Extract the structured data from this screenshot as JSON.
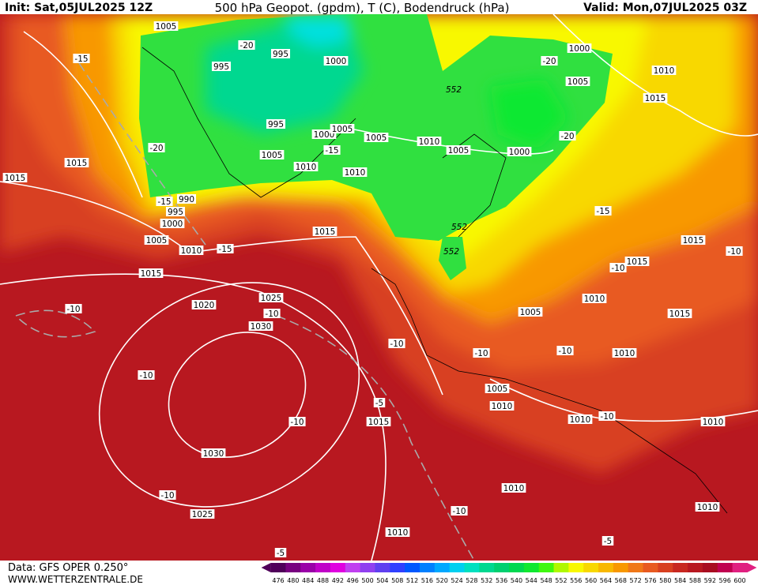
{
  "header": {
    "init": "Init: Sat,05JUL2025 12Z",
    "title": "500 hPa Geopot. (gpdm), T (C), Bodendruck (hPa)",
    "valid": "Valid: Mon,07JUL2025 03Z"
  },
  "footer": {
    "source": "Data: GFS OPER 0.250°",
    "site": "WWW.WETTERZENTRALE.DE"
  },
  "legend": {
    "values": [
      476,
      480,
      484,
      488,
      492,
      496,
      500,
      504,
      508,
      512,
      516,
      520,
      524,
      528,
      532,
      536,
      540,
      544,
      548,
      552,
      556,
      560,
      564,
      568,
      572,
      576,
      580,
      584,
      588,
      592,
      596,
      600
    ],
    "colors": [
      "#50005a",
      "#780080",
      "#9a00a8",
      "#c000c8",
      "#e000e0",
      "#c040f0",
      "#9040f0",
      "#6040f0",
      "#3040ff",
      "#0058ff",
      "#0080ff",
      "#00a8ff",
      "#00d0f0",
      "#00e0c0",
      "#00d890",
      "#00d070",
      "#00d850",
      "#10e830",
      "#40f810",
      "#b0f800",
      "#f8f800",
      "#f8d800",
      "#f8b800",
      "#f89800",
      "#f07818",
      "#e85a20",
      "#d84020",
      "#c82820",
      "#b81820",
      "#a80c20",
      "#c00050",
      "#e02080"
    ]
  },
  "map": {
    "pressure_labels": [
      "1005",
      "995",
      "995",
      "1000",
      "1000",
      "1005",
      "1010",
      "1015",
      "995",
      "1000",
      "1005",
      "1005",
      "1010",
      "1005",
      "1000",
      "1005",
      "1010",
      "1010",
      "1015",
      "1015",
      "990",
      "995",
      "1000",
      "1005",
      "1010",
      "1015",
      "1015",
      "1020",
      "1025",
      "1030",
      "1015",
      "1015",
      "1010",
      "1005",
      "1015",
      "1010",
      "1005",
      "1010",
      "1010",
      "1010",
      "1015",
      "1030",
      "1025",
      "1010",
      "1010",
      "1010"
    ],
    "temperature_labels": [
      "-15",
      "-20",
      "-20",
      "-20",
      "-20",
      "-15",
      "-15",
      "-15",
      "-15",
      "-10",
      "-10",
      "-10",
      "-10",
      "-10",
      "-10",
      "-10",
      "-10",
      "-10",
      "-10",
      "-5",
      "-10",
      "-10",
      "-5",
      "-5"
    ],
    "geopotential_labels": [
      "552",
      "552",
      "552"
    ]
  }
}
